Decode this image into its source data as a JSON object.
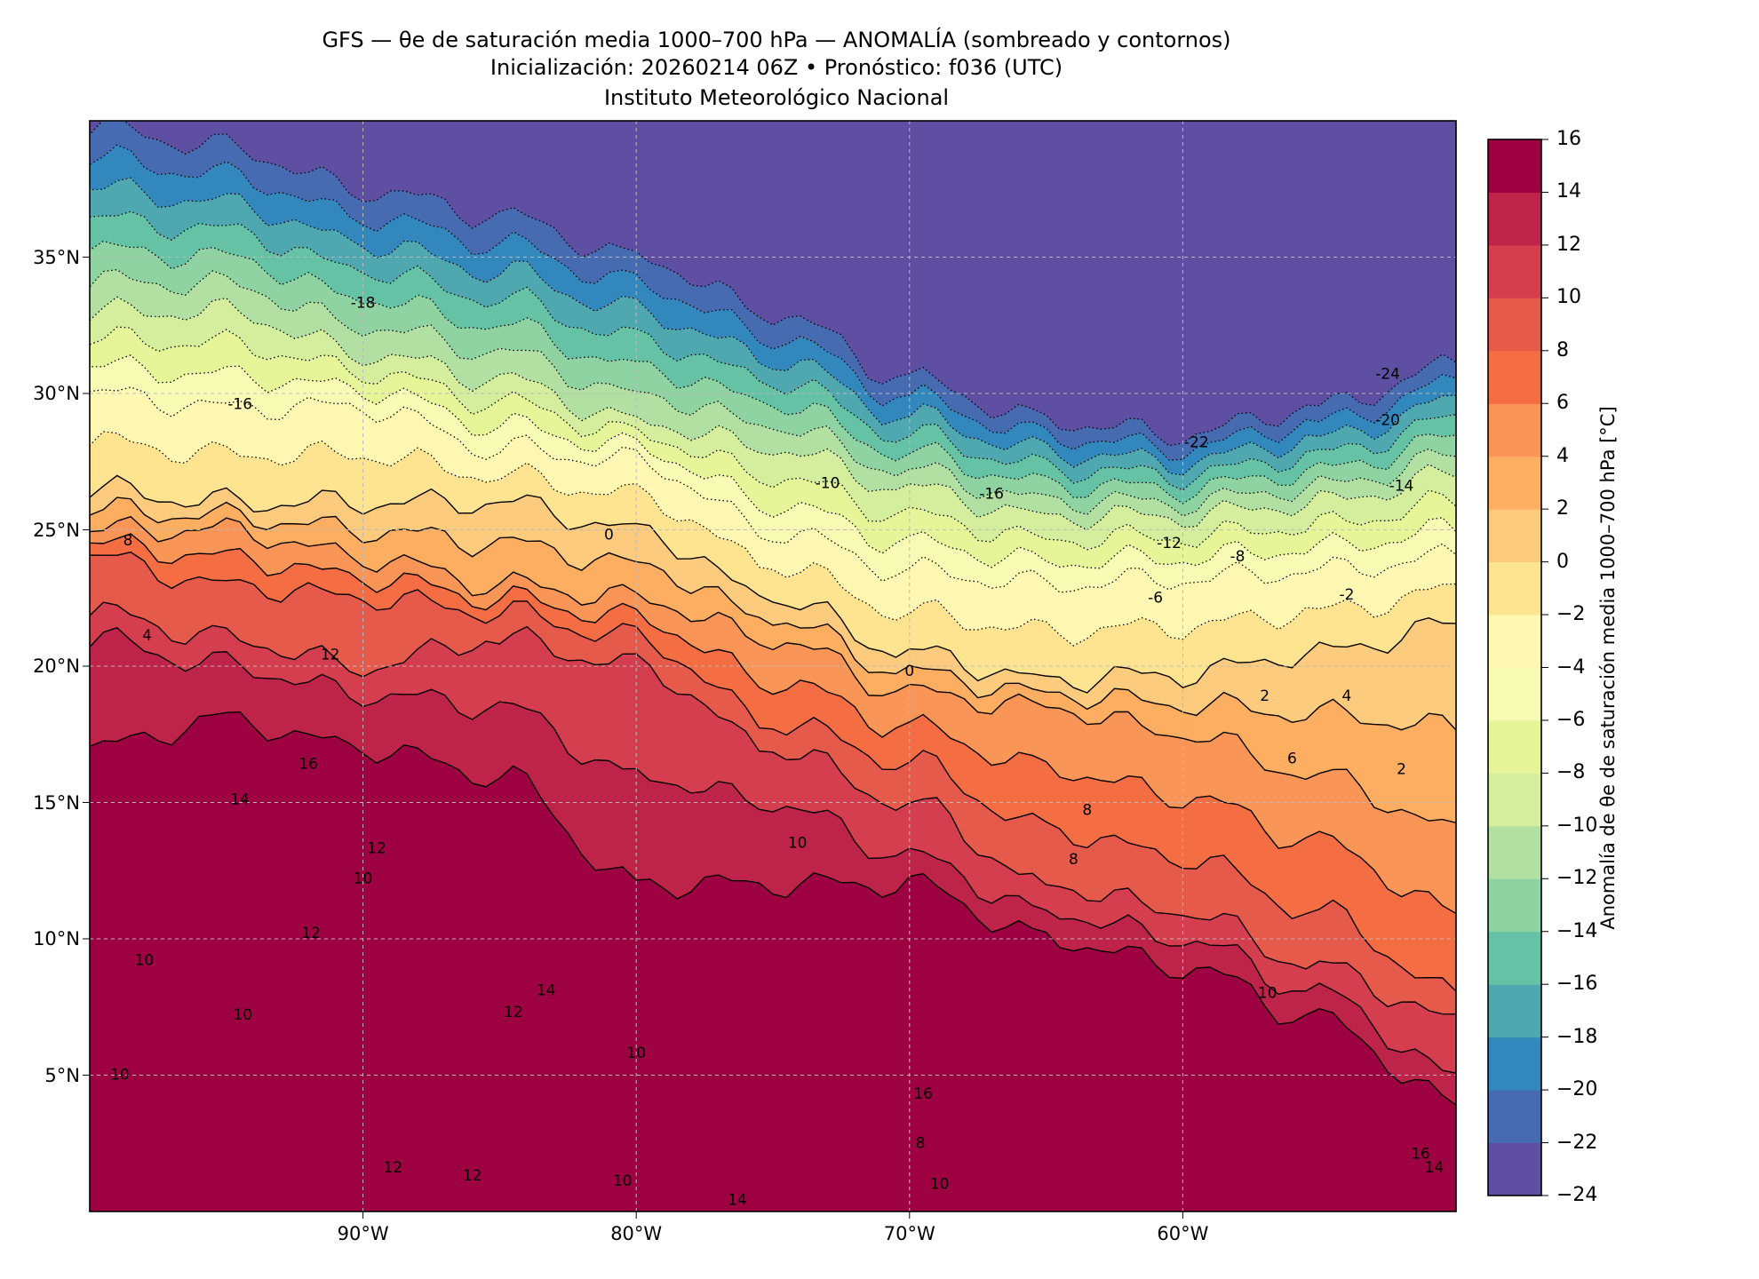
{
  "title": {
    "line1": "GFS — θe de saturación media 1000–700 hPa — ANOMALÍA (sombreado y contornos)",
    "line2": "Inicialización: 20260214 06Z   •   Pronóstico: f036 (UTC)",
    "line3": "Instituto Meteorológico Nacional"
  },
  "map": {
    "lon_range": [
      -100,
      -50
    ],
    "lat_range": [
      0,
      40
    ],
    "x_ticks": [
      {
        "value": -90,
        "label": "90°W"
      },
      {
        "value": -80,
        "label": "80°W"
      },
      {
        "value": -70,
        "label": "70°W"
      },
      {
        "value": -60,
        "label": "60°W"
      }
    ],
    "y_ticks": [
      {
        "value": 35,
        "label": "35°N"
      },
      {
        "value": 30,
        "label": "30°N"
      },
      {
        "value": 25,
        "label": "25°N"
      },
      {
        "value": 20,
        "label": "20°N"
      },
      {
        "value": 15,
        "label": "15°N"
      },
      {
        "value": 10,
        "label": "10°N"
      },
      {
        "value": 5,
        "label": "5°N"
      }
    ],
    "grid": true
  },
  "chart_data": {
    "type": "heatmap",
    "variable": "Anomalía de θe de saturación media 1000–700 hPa [°C]",
    "levels": [
      -24,
      -22,
      -20,
      -18,
      -16,
      -14,
      -12,
      -10,
      -8,
      -6,
      -4,
      -2,
      0,
      2,
      4,
      6,
      8,
      10,
      12,
      14,
      16
    ],
    "colors": [
      "#5e4fa2",
      "#466bb0",
      "#3288bd",
      "#4fa8b0",
      "#66c2a5",
      "#8fd3a3",
      "#b2dfa2",
      "#d4ee9e",
      "#e6f598",
      "#f7fbb3",
      "#fff7b2",
      "#fee491",
      "#fdcb7d",
      "#fdae61",
      "#f99556",
      "#f46d43",
      "#e55a4b",
      "#d53e4f",
      "#be2449",
      "#9e0142"
    ],
    "key_boundaries_lon": [
      -100,
      -95,
      -90,
      -85,
      -80,
      -75,
      -70,
      -65,
      -60,
      -55,
      -50
    ],
    "key_boundaries": [
      {
        "level": -22,
        "lat": [
          39.8,
          39,
          37.5,
          36.5,
          35,
          33,
          30.5,
          29,
          28.5,
          29.5,
          31
        ]
      },
      {
        "level": -10,
        "lat": [
          33,
          33,
          31.5,
          30.5,
          29,
          28,
          26.5,
          25.5,
          25.5,
          26,
          27
        ]
      },
      {
        "level": -4,
        "lat": [
          30,
          29.5,
          29.5,
          28,
          27.5,
          25,
          23.5,
          23,
          23.2,
          23.5,
          24
        ]
      },
      {
        "level": 0,
        "lat": [
          26.5,
          26,
          26,
          26,
          25,
          22.5,
          20.5,
          19.5,
          19.7,
          20.5,
          21.5
        ]
      },
      {
        "level": 4,
        "lat": [
          25,
          25,
          24,
          23,
          22.5,
          21,
          19,
          18.5,
          17.5,
          16,
          14
        ]
      },
      {
        "level": 8,
        "lat": [
          24,
          23,
          22.5,
          22,
          21,
          18,
          16.5,
          14,
          13,
          11,
          8
        ]
      },
      {
        "level": 10,
        "lat": [
          22,
          21,
          20,
          21,
          20,
          17,
          15,
          12,
          11,
          9,
          7
        ]
      },
      {
        "level": 12,
        "lat": [
          21,
          20,
          19,
          18.5,
          16,
          15,
          13,
          11,
          10,
          8,
          5
        ]
      },
      {
        "level": 14,
        "lat": [
          17,
          18,
          17,
          16,
          12,
          12,
          12,
          10,
          9,
          7,
          4
        ]
      }
    ],
    "contour_labels": [
      {
        "text": "-18",
        "lon": -90,
        "lat": 33.3
      },
      {
        "text": "-24",
        "lon": -52.5,
        "lat": 30.7
      },
      {
        "text": "-22",
        "lon": -59.5,
        "lat": 28.2
      },
      {
        "text": "-20",
        "lon": -52.5,
        "lat": 29.0
      },
      {
        "text": "-16",
        "lon": -67,
        "lat": 26.3
      },
      {
        "text": "-14",
        "lon": -52,
        "lat": 26.6
      },
      {
        "text": "-12",
        "lon": -60.5,
        "lat": 24.5
      },
      {
        "text": "-10",
        "lon": -73,
        "lat": 26.7
      },
      {
        "text": "-8",
        "lon": -58,
        "lat": 24
      },
      {
        "text": "-6",
        "lon": -61,
        "lat": 22.5
      },
      {
        "text": "-2",
        "lon": -54,
        "lat": 22.6
      },
      {
        "text": "-16",
        "lon": -94.5,
        "lat": 29.6
      },
      {
        "text": "0",
        "lon": -81,
        "lat": 24.8
      },
      {
        "text": "0",
        "lon": -70,
        "lat": 19.8
      },
      {
        "text": "2",
        "lon": -57,
        "lat": 18.9
      },
      {
        "text": "4",
        "lon": -54,
        "lat": 18.9
      },
      {
        "text": "2",
        "lon": -52,
        "lat": 16.2
      },
      {
        "text": "6",
        "lon": -56,
        "lat": 16.6
      },
      {
        "text": "8",
        "lon": -63.5,
        "lat": 14.7
      },
      {
        "text": "8",
        "lon": -64,
        "lat": 12.9
      },
      {
        "text": "8",
        "lon": -98.6,
        "lat": 24.6
      },
      {
        "text": "4",
        "lon": -97.9,
        "lat": 21.1
      },
      {
        "text": "12",
        "lon": -91.2,
        "lat": 20.4
      },
      {
        "text": "16",
        "lon": -92,
        "lat": 16.4
      },
      {
        "text": "14",
        "lon": -94.5,
        "lat": 15.1
      },
      {
        "text": "12",
        "lon": -89.5,
        "lat": 13.3
      },
      {
        "text": "10",
        "lon": -90,
        "lat": 12.2
      },
      {
        "text": "12",
        "lon": -91.9,
        "lat": 10.2
      },
      {
        "text": "10",
        "lon": -98,
        "lat": 9.2
      },
      {
        "text": "10",
        "lon": -94.4,
        "lat": 7.2
      },
      {
        "text": "10",
        "lon": -98.9,
        "lat": 5.0
      },
      {
        "text": "12",
        "lon": -84.5,
        "lat": 7.3
      },
      {
        "text": "14",
        "lon": -83.3,
        "lat": 8.1
      },
      {
        "text": "10",
        "lon": -80,
        "lat": 5.8
      },
      {
        "text": "12",
        "lon": -86,
        "lat": 1.3
      },
      {
        "text": "12",
        "lon": -88.9,
        "lat": 1.6
      },
      {
        "text": "10",
        "lon": -80.5,
        "lat": 1.1
      },
      {
        "text": "10",
        "lon": -74.1,
        "lat": 13.5
      },
      {
        "text": "16",
        "lon": -69.5,
        "lat": 4.3
      },
      {
        "text": "8",
        "lon": -69.6,
        "lat": 2.5
      },
      {
        "text": "10",
        "lon": -68.9,
        "lat": 1.0
      },
      {
        "text": "14",
        "lon": -76.3,
        "lat": 0.4
      },
      {
        "text": "10",
        "lon": -56.9,
        "lat": 8.0
      },
      {
        "text": "16",
        "lon": -51.3,
        "lat": 2.1
      },
      {
        "text": "14",
        "lon": -50.8,
        "lat": 1.6
      }
    ]
  },
  "colorbar": {
    "ticks": [
      "16",
      "14",
      "12",
      "10",
      "8",
      "6",
      "4",
      "2",
      "0",
      "−2",
      "−4",
      "−6",
      "−8",
      "−10",
      "−12",
      "−14",
      "−16",
      "−18",
      "−20",
      "−22",
      "−24"
    ],
    "label": "Anomalía de θe de saturación media 1000–700 hPa [°C]"
  }
}
